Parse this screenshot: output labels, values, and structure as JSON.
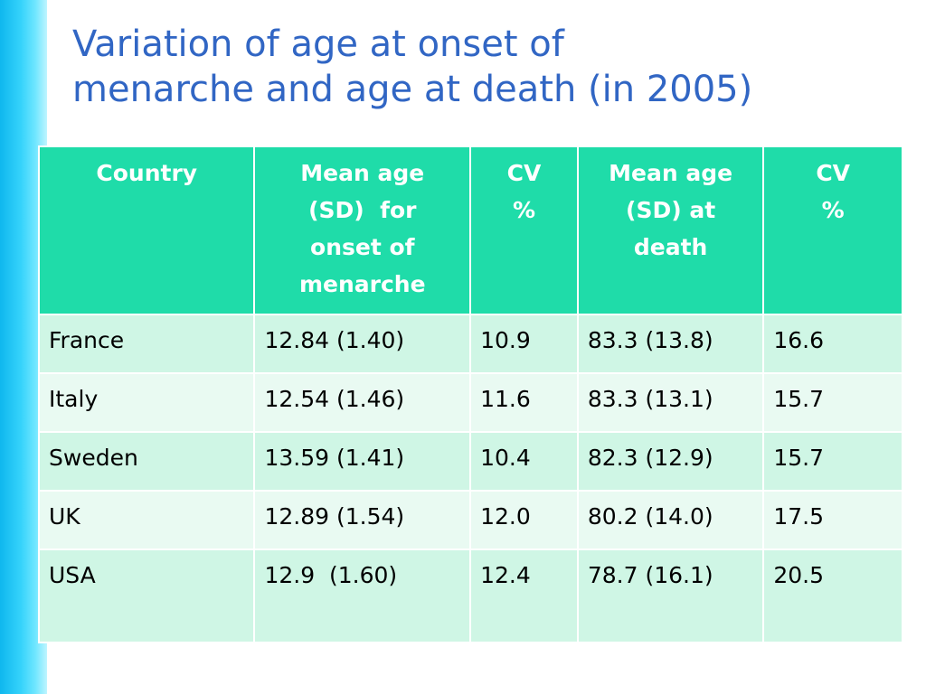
{
  "title": {
    "line1": "Variation of age at onset of",
    "line2": "menarche and age at death (in 2005)"
  },
  "table": {
    "headers": [
      [
        "Country"
      ],
      [
        "Mean age",
        "(SD)  for",
        "onset of",
        "menarche"
      ],
      [
        "CV",
        "%"
      ],
      [
        "Mean age",
        "(SD) at",
        "death"
      ],
      [
        "CV",
        "%"
      ]
    ],
    "rows": [
      [
        "France",
        "12.84 (1.40)",
        "10.9",
        "83.3 (13.8)",
        "16.6"
      ],
      [
        "Italy",
        "12.54 (1.46)",
        "11.6",
        "83.3 (13.1)",
        "15.7"
      ],
      [
        "Sweden",
        "13.59 (1.41)",
        "10.4",
        "82.3 (12.9)",
        "15.7"
      ],
      [
        "UK",
        "12.89 (1.54)",
        "12.0",
        "80.2 (14.0)",
        "17.5"
      ],
      [
        "USA",
        "12.9  (1.60)",
        "12.4",
        "78.7 (16.1)",
        "20.5"
      ]
    ]
  },
  "colors": {
    "title": "#3166c4",
    "header_bg": "#1fdca9",
    "row_odd": "#cff6e5",
    "row_even": "#e9faf2",
    "side_bar": "#36d3fb"
  }
}
